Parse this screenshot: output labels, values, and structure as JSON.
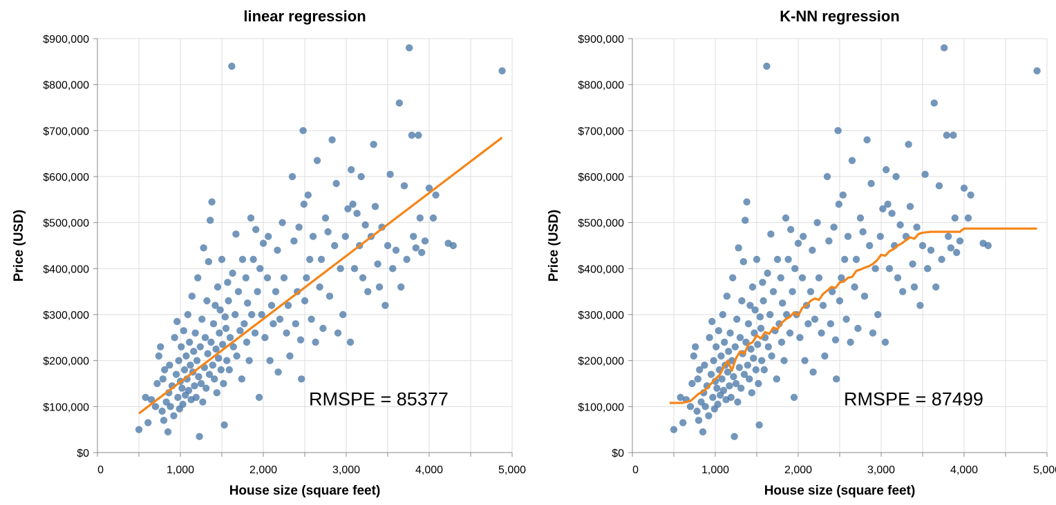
{
  "chart_data": [
    {
      "type": "scatter",
      "title": "linear regression",
      "xlabel": "House size (square feet)",
      "ylabel": "Price (USD)",
      "xlim": [
        0,
        5000
      ],
      "ylim": [
        0,
        900000
      ],
      "x_ticks": [
        0,
        1000,
        2000,
        3000,
        4000,
        5000
      ],
      "x_tick_labels": [
        "0",
        "1,000",
        "2,000",
        "3,000",
        "4,000",
        "5,000"
      ],
      "y_ticks": [
        0,
        100000,
        200000,
        300000,
        400000,
        500000,
        600000,
        700000,
        800000,
        900000
      ],
      "y_tick_labels": [
        "$0",
        "$100,000",
        "$200,000",
        "$300,000",
        "$400,000",
        "$500,000",
        "$600,000",
        "$700,000",
        "$800,000",
        "$900,000"
      ],
      "grid": true,
      "annotation": "RMSPE = 85377",
      "point_color": "#4c78a8",
      "line_color": "#f58518",
      "points": [
        [
          500,
          50000
        ],
        [
          580,
          120000
        ],
        [
          610,
          65000
        ],
        [
          650,
          115000
        ],
        [
          700,
          100000
        ],
        [
          720,
          150000
        ],
        [
          740,
          210000
        ],
        [
          760,
          230000
        ],
        [
          780,
          90000
        ],
        [
          790,
          160000
        ],
        [
          800,
          70000
        ],
        [
          810,
          180000
        ],
        [
          830,
          110000
        ],
        [
          850,
          45000
        ],
        [
          860,
          130000
        ],
        [
          870,
          190000
        ],
        [
          880,
          100000
        ],
        [
          900,
          145000
        ],
        [
          920,
          80000
        ],
        [
          930,
          250000
        ],
        [
          950,
          170000
        ],
        [
          960,
          285000
        ],
        [
          970,
          120000
        ],
        [
          980,
          200000
        ],
        [
          990,
          95000
        ],
        [
          1000,
          155000
        ],
        [
          1010,
          230000
        ],
        [
          1020,
          140000
        ],
        [
          1030,
          105000
        ],
        [
          1040,
          265000
        ],
        [
          1050,
          180000
        ],
        [
          1060,
          125000
        ],
        [
          1070,
          210000
        ],
        [
          1080,
          160000
        ],
        [
          1090,
          300000
        ],
        [
          1100,
          135000
        ],
        [
          1110,
          240000
        ],
        [
          1120,
          190000
        ],
        [
          1130,
          115000
        ],
        [
          1140,
          340000
        ],
        [
          1150,
          175000
        ],
        [
          1160,
          220000
        ],
        [
          1170,
          145000
        ],
        [
          1180,
          260000
        ],
        [
          1190,
          120000
        ],
        [
          1200,
          200000
        ],
        [
          1210,
          380000
        ],
        [
          1220,
          165000
        ],
        [
          1230,
          35000
        ],
        [
          1240,
          230000
        ],
        [
          1250,
          150000
        ],
        [
          1260,
          290000
        ],
        [
          1270,
          110000
        ],
        [
          1280,
          445000
        ],
        [
          1290,
          185000
        ],
        [
          1300,
          250000
        ],
        [
          1310,
          140000
        ],
        [
          1320,
          330000
        ],
        [
          1330,
          215000
        ],
        [
          1340,
          415000
        ],
        [
          1350,
          170000
        ],
        [
          1360,
          505000
        ],
        [
          1370,
          240000
        ],
        [
          1380,
          545000
        ],
        [
          1390,
          190000
        ],
        [
          1400,
          280000
        ],
        [
          1410,
          160000
        ],
        [
          1420,
          320000
        ],
        [
          1430,
          225000
        ],
        [
          1440,
          130000
        ],
        [
          1450,
          360000
        ],
        [
          1460,
          205000
        ],
        [
          1470,
          260000
        ],
        [
          1480,
          310000
        ],
        [
          1490,
          180000
        ],
        [
          1500,
          420000
        ],
        [
          1510,
          235000
        ],
        [
          1520,
          150000
        ],
        [
          1530,
          60000
        ],
        [
          1540,
          295000
        ],
        [
          1550,
          270000
        ],
        [
          1560,
          200000
        ],
        [
          1570,
          370000
        ],
        [
          1580,
          330000
        ],
        [
          1590,
          180000
        ],
        [
          1600,
          250000
        ],
        [
          1620,
          840000
        ],
        [
          1630,
          390000
        ],
        [
          1640,
          230000
        ],
        [
          1660,
          300000
        ],
        [
          1670,
          475000
        ],
        [
          1680,
          210000
        ],
        [
          1700,
          350000
        ],
        [
          1720,
          265000
        ],
        [
          1740,
          160000
        ],
        [
          1750,
          420000
        ],
        [
          1770,
          280000
        ],
        [
          1790,
          380000
        ],
        [
          1800,
          240000
        ],
        [
          1810,
          325000
        ],
        [
          1830,
          200000
        ],
        [
          1850,
          510000
        ],
        [
          1860,
          300000
        ],
        [
          1880,
          420000
        ],
        [
          1900,
          260000
        ],
        [
          1910,
          485000
        ],
        [
          1930,
          350000
        ],
        [
          1950,
          120000
        ],
        [
          1960,
          400000
        ],
        [
          1980,
          300000
        ],
        [
          2000,
          455000
        ],
        [
          2020,
          250000
        ],
        [
          2050,
          380000
        ],
        [
          2060,
          470000
        ],
        [
          2080,
          200000
        ],
        [
          2100,
          320000
        ],
        [
          2120,
          280000
        ],
        [
          2150,
          350000
        ],
        [
          2170,
          440000
        ],
        [
          2180,
          175000
        ],
        [
          2200,
          290000
        ],
        [
          2230,
          500000
        ],
        [
          2250,
          380000
        ],
        [
          2280,
          260000
        ],
        [
          2300,
          320000
        ],
        [
          2320,
          210000
        ],
        [
          2350,
          600000
        ],
        [
          2370,
          460000
        ],
        [
          2390,
          280000
        ],
        [
          2410,
          350000
        ],
        [
          2430,
          490000
        ],
        [
          2450,
          245000
        ],
        [
          2460,
          160000
        ],
        [
          2480,
          700000
        ],
        [
          2490,
          540000
        ],
        [
          2500,
          330000
        ],
        [
          2520,
          380000
        ],
        [
          2540,
          560000
        ],
        [
          2560,
          420000
        ],
        [
          2580,
          290000
        ],
        [
          2600,
          470000
        ],
        [
          2630,
          240000
        ],
        [
          2650,
          635000
        ],
        [
          2680,
          360000
        ],
        [
          2700,
          420000
        ],
        [
          2720,
          270000
        ],
        [
          2750,
          510000
        ],
        [
          2780,
          480000
        ],
        [
          2800,
          340000
        ],
        [
          2830,
          680000
        ],
        [
          2860,
          450000
        ],
        [
          2880,
          585000
        ],
        [
          2900,
          260000
        ],
        [
          2930,
          400000
        ],
        [
          2960,
          300000
        ],
        [
          2990,
          470000
        ],
        [
          3020,
          530000
        ],
        [
          3050,
          240000
        ],
        [
          3060,
          615000
        ],
        [
          3080,
          540000
        ],
        [
          3100,
          400000
        ],
        [
          3130,
          520000
        ],
        [
          3160,
          450000
        ],
        [
          3180,
          600000
        ],
        [
          3200,
          380000
        ],
        [
          3230,
          495000
        ],
        [
          3260,
          350000
        ],
        [
          3300,
          470000
        ],
        [
          3330,
          670000
        ],
        [
          3350,
          535000
        ],
        [
          3380,
          410000
        ],
        [
          3400,
          360000
        ],
        [
          3430,
          490000
        ],
        [
          3470,
          320000
        ],
        [
          3500,
          450000
        ],
        [
          3530,
          605000
        ],
        [
          3560,
          400000
        ],
        [
          3600,
          440000
        ],
        [
          3640,
          760000
        ],
        [
          3660,
          360000
        ],
        [
          3700,
          580000
        ],
        [
          3730,
          420000
        ],
        [
          3760,
          880000
        ],
        [
          3790,
          690000
        ],
        [
          3810,
          470000
        ],
        [
          3840,
          445000
        ],
        [
          3870,
          690000
        ],
        [
          3890,
          510000
        ],
        [
          3910,
          435000
        ],
        [
          3950,
          460000
        ],
        [
          4000,
          575000
        ],
        [
          4050,
          510000
        ],
        [
          4080,
          560000
        ],
        [
          4230,
          455000
        ],
        [
          4290,
          450000
        ],
        [
          4880,
          830000
        ]
      ],
      "fit_line": {
        "x": [
          500,
          4880
        ],
        "y": [
          85000,
          685000
        ]
      }
    },
    {
      "type": "scatter",
      "title": "K-NN regression",
      "xlabel": "House size (square feet)",
      "ylabel": "Price (USD)",
      "xlim": [
        0,
        5000
      ],
      "ylim": [
        0,
        900000
      ],
      "x_ticks": [
        0,
        1000,
        2000,
        3000,
        4000,
        5000
      ],
      "x_tick_labels": [
        "0",
        "1,000",
        "2,000",
        "3,000",
        "4,000",
        "5,000"
      ],
      "y_ticks": [
        0,
        100000,
        200000,
        300000,
        400000,
        500000,
        600000,
        700000,
        800000,
        900000
      ],
      "y_tick_labels": [
        "$0",
        "$100,000",
        "$200,000",
        "$300,000",
        "$400,000",
        "$500,000",
        "$600,000",
        "$700,000",
        "$800,000",
        "$900,000"
      ],
      "grid": true,
      "annotation": "RMSPE = 87499",
      "point_color": "#4c78a8",
      "line_color": "#f58518",
      "points": "same",
      "fit_line": {
        "x": [
          450,
          600,
          700,
          750,
          800,
          850,
          900,
          950,
          1000,
          1050,
          1100,
          1150,
          1200,
          1250,
          1300,
          1350,
          1400,
          1450,
          1500,
          1550,
          1600,
          1650,
          1700,
          1750,
          1800,
          1850,
          1900,
          1950,
          2000,
          2050,
          2100,
          2150,
          2200,
          2250,
          2300,
          2350,
          2400,
          2450,
          2500,
          2550,
          2600,
          2650,
          2700,
          2750,
          2800,
          2850,
          2900,
          2950,
          3000,
          3050,
          3100,
          3150,
          3200,
          3250,
          3300,
          3350,
          3400,
          3450,
          3500,
          3600,
          3700,
          3800,
          3900,
          3950,
          4000,
          4500,
          4880
        ],
        "y": [
          108000,
          108000,
          112000,
          120000,
          128000,
          132000,
          140000,
          150000,
          160000,
          168000,
          185000,
          200000,
          178000,
          205000,
          220000,
          215000,
          235000,
          240000,
          255000,
          248000,
          262000,
          258000,
          272000,
          268000,
          282000,
          290000,
          295000,
          305000,
          298000,
          315000,
          320000,
          330000,
          335000,
          332000,
          345000,
          352000,
          360000,
          358000,
          370000,
          372000,
          380000,
          382000,
          395000,
          398000,
          402000,
          405000,
          410000,
          418000,
          430000,
          428000,
          438000,
          442000,
          450000,
          455000,
          462000,
          468000,
          465000,
          475000,
          478000,
          480000,
          480000,
          480000,
          480000,
          480000,
          487000,
          487000,
          487000
        ]
      }
    }
  ]
}
